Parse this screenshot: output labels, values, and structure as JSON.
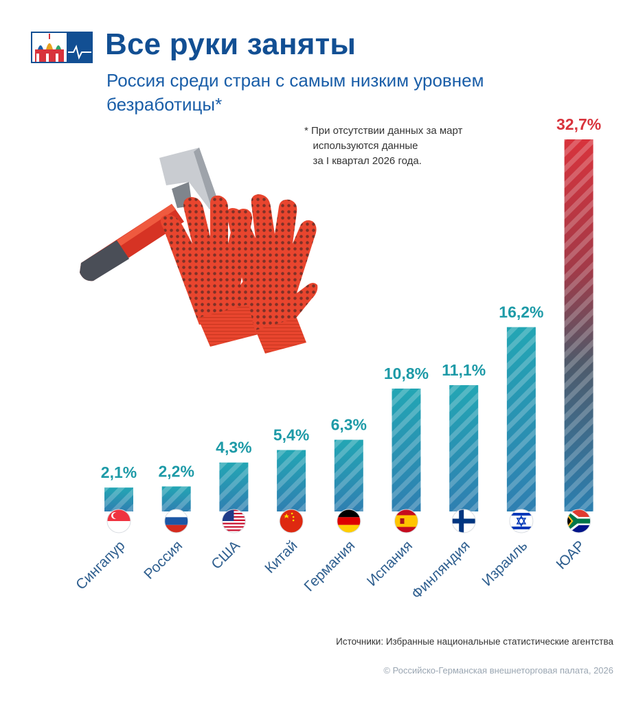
{
  "header": {
    "title": "Все руки заняты",
    "subtitle": "Россия среди стран с самым низким уровнем безработицы*",
    "footnote": "* При отсутствии данных за март\n   используются данные\n   за I квартал 2026 года."
  },
  "footer": {
    "source": "Источники: Избранные национальные статистические агентства",
    "copyright": "© Российско-Германская внешнеторговая палата, 2026"
  },
  "colors": {
    "bar": "#2a8fb0",
    "bar_highlight": "#d8333c",
    "value_label": "#1d9aa7",
    "value_label_highlight": "#d8333c",
    "brand": "#124f93"
  },
  "icons": [
    "kremlin-logo-icon",
    "hammer-icon",
    "work-gloves-icon"
  ],
  "chart_data": {
    "type": "bar",
    "unit": "%",
    "categories": [
      "Сингапур",
      "Россия",
      "США",
      "Китай",
      "Германия",
      "Испания",
      "Финляндия",
      "Израиль",
      "ЮАР"
    ],
    "values": [
      2.1,
      2.2,
      4.3,
      5.4,
      6.3,
      10.8,
      11.1,
      16.2,
      32.7
    ],
    "value_labels": [
      "2,1%",
      "2,2%",
      "4,3%",
      "5,4%",
      "6,3%",
      "10,8%",
      "11,1%",
      "16,2%",
      "32,7%"
    ],
    "flags": [
      "singapore-flag-icon",
      "russia-flag-icon",
      "usa-flag-icon",
      "china-flag-icon",
      "germany-flag-icon",
      "spain-flag-icon",
      "finland-flag-icon",
      "israel-flag-icon",
      "south-africa-flag-icon"
    ],
    "highlight_index": 8,
    "ylim": [
      0,
      35
    ],
    "grid": false,
    "legend": "none"
  }
}
